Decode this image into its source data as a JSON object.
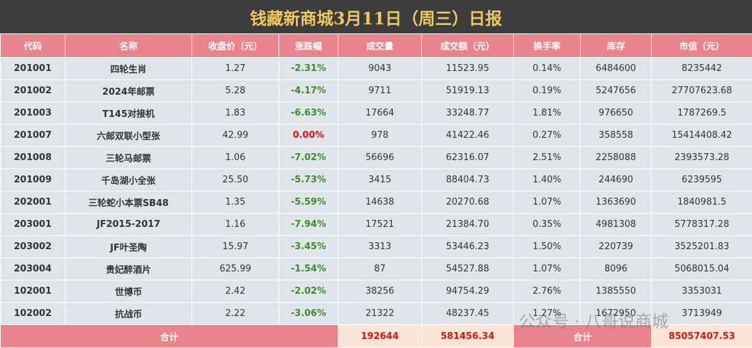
{
  "title": "钱藏新商城3月11日（周三）日报",
  "table": {
    "headers": [
      "代码",
      "名称",
      "收盘价（元）",
      "涨跌幅",
      "成交量",
      "成交额（元）",
      "换手率",
      "库存",
      "市值（元）"
    ],
    "rows": [
      [
        "201001",
        "四轮生肖",
        "1.27",
        "-2.31%",
        "9043",
        "11523.95",
        "0.14%",
        "6484600",
        "8235442"
      ],
      [
        "201002",
        "2024年邮票",
        "5.28",
        "-4.17%",
        "9711",
        "51919.13",
        "0.19%",
        "5247656",
        "27707623.68"
      ],
      [
        "201003",
        "T145对接机",
        "1.83",
        "-6.63%",
        "17664",
        "33248.77",
        "1.81%",
        "976650",
        "1787269.5"
      ],
      [
        "201007",
        "六邮双联小型张",
        "42.99",
        "0.00%",
        "978",
        "41422.46",
        "0.27%",
        "358558",
        "15414408.42"
      ],
      [
        "201008",
        "三轮马邮票",
        "1.06",
        "-7.02%",
        "56696",
        "62316.07",
        "2.51%",
        "2258088",
        "2393573.28"
      ],
      [
        "201009",
        "千岛湖小全张",
        "25.50",
        "-5.73%",
        "3415",
        "88404.73",
        "1.40%",
        "244690",
        "6239595"
      ],
      [
        "202001",
        "三轮蛇小本票SB48",
        "1.35",
        "-5.59%",
        "14638",
        "20270.68",
        "1.07%",
        "1363690",
        "1840981.5"
      ],
      [
        "203001",
        "JF2015-2017",
        "1.16",
        "-7.94%",
        "17521",
        "21384.70",
        "0.35%",
        "4981308",
        "5778317.28"
      ],
      [
        "203002",
        "JF叶圣陶",
        "15.97",
        "-3.45%",
        "3313",
        "53446.23",
        "1.50%",
        "220739",
        "3525201.83"
      ],
      [
        "203004",
        "贵妃醉酒片",
        "625.99",
        "-1.54%",
        "87",
        "54527.88",
        "1.07%",
        "8096",
        "5068015.04"
      ],
      [
        "102001",
        "世博币",
        "2.42",
        "-2.02%",
        "38256",
        "94754.29",
        "2.76%",
        "1385550",
        "3353031"
      ],
      [
        "102002",
        "抗战币",
        "2.22",
        "-3.06%",
        "21322",
        "48237.45",
        "1.27%",
        "1672950",
        "3713949"
      ]
    ]
  },
  "footer": [
    "合计",
    "192644",
    "581456.34",
    "合计",
    "85057407.53"
  ],
  "watermark": "公众号 · 八哥说商城"
}
